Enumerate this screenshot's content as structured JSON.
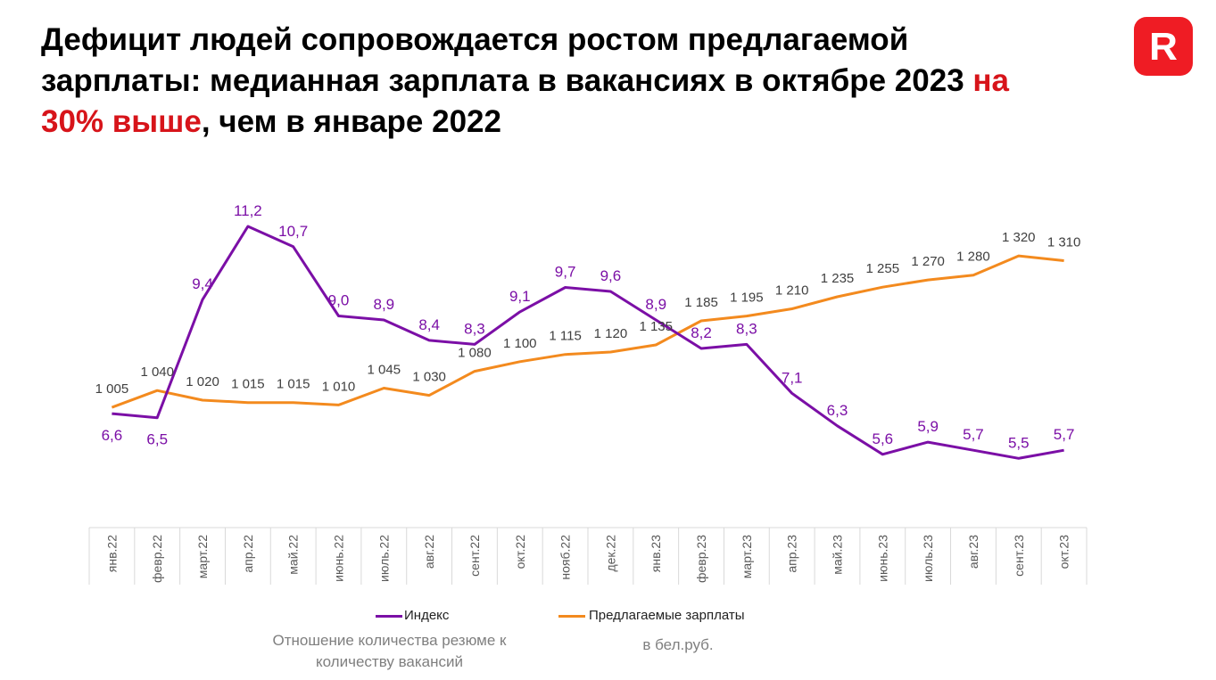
{
  "title": {
    "part1": "Дефицит людей сопровождается ростом предлагаемой зарплаты: медианная зарплата в вакансиях в октябре 2023 ",
    "highlight": "на 30% выше",
    "part2": ", чем в январе 2022"
  },
  "logo": {
    "letter": "R",
    "color": "#ef1c24"
  },
  "colors": {
    "index": "#7b0fa6",
    "salary": "#f38a1e",
    "highlight": "#d7141a"
  },
  "legend": {
    "index_label": "Индекс",
    "salary_label": "Предлагаемые зарплаты",
    "index_note": "Отношение количества резюме к количеству вакансий",
    "salary_note": "в бел.руб."
  },
  "chart_data": {
    "type": "line",
    "categories": [
      "янв.22",
      "февр.22",
      "март.22",
      "апр.22",
      "май.22",
      "июнь.22",
      "июль.22",
      "авг.22",
      "сент.22",
      "окт.22",
      "нояб.22",
      "дек.22",
      "янв.23",
      "февр.23",
      "март.23",
      "апр.23",
      "май.23",
      "июнь.23",
      "июль.23",
      "авг.23",
      "сент.23",
      "окт.23"
    ],
    "series": [
      {
        "name": "Индекс",
        "color": "#7b0fa6",
        "values": [
          6.6,
          6.5,
          9.4,
          11.2,
          10.7,
          9.0,
          8.9,
          8.4,
          8.3,
          9.1,
          9.7,
          9.6,
          8.9,
          8.2,
          8.3,
          7.1,
          6.3,
          5.6,
          5.9,
          5.7,
          5.5,
          5.7
        ],
        "labels": [
          "6,6",
          "6,5",
          "9,4",
          "11,2",
          "10,7",
          "9,0",
          "8,9",
          "8,4",
          "8,3",
          "9,1",
          "9,7",
          "9,6",
          "8,9",
          "8,2",
          "8,3",
          "7,1",
          "6,3",
          "5,6",
          "5,9",
          "5,7",
          "5,5",
          "5,7"
        ]
      },
      {
        "name": "Предлагаемые зарплаты",
        "color": "#f38a1e",
        "values": [
          1005,
          1040,
          1020,
          1015,
          1015,
          1010,
          1045,
          1030,
          1080,
          1100,
          1115,
          1120,
          1135,
          1185,
          1195,
          1210,
          1235,
          1255,
          1270,
          1280,
          1320,
          1310
        ],
        "labels": [
          "1 005",
          "1 040",
          "1 020",
          "1 015",
          "1 015",
          "1 010",
          "1 045",
          "1 030",
          "1 080",
          "1 100",
          "1 115",
          "1 120",
          "1 135",
          "1 185",
          "1 195",
          "1 210",
          "1 235",
          "1 255",
          "1 270",
          "1 280",
          "1 320",
          "1 310"
        ]
      }
    ],
    "index_range": [
      3.8,
      12.6
    ],
    "salary_range": [
      755,
      1500
    ],
    "grid": false,
    "legend_position": "bottom"
  }
}
